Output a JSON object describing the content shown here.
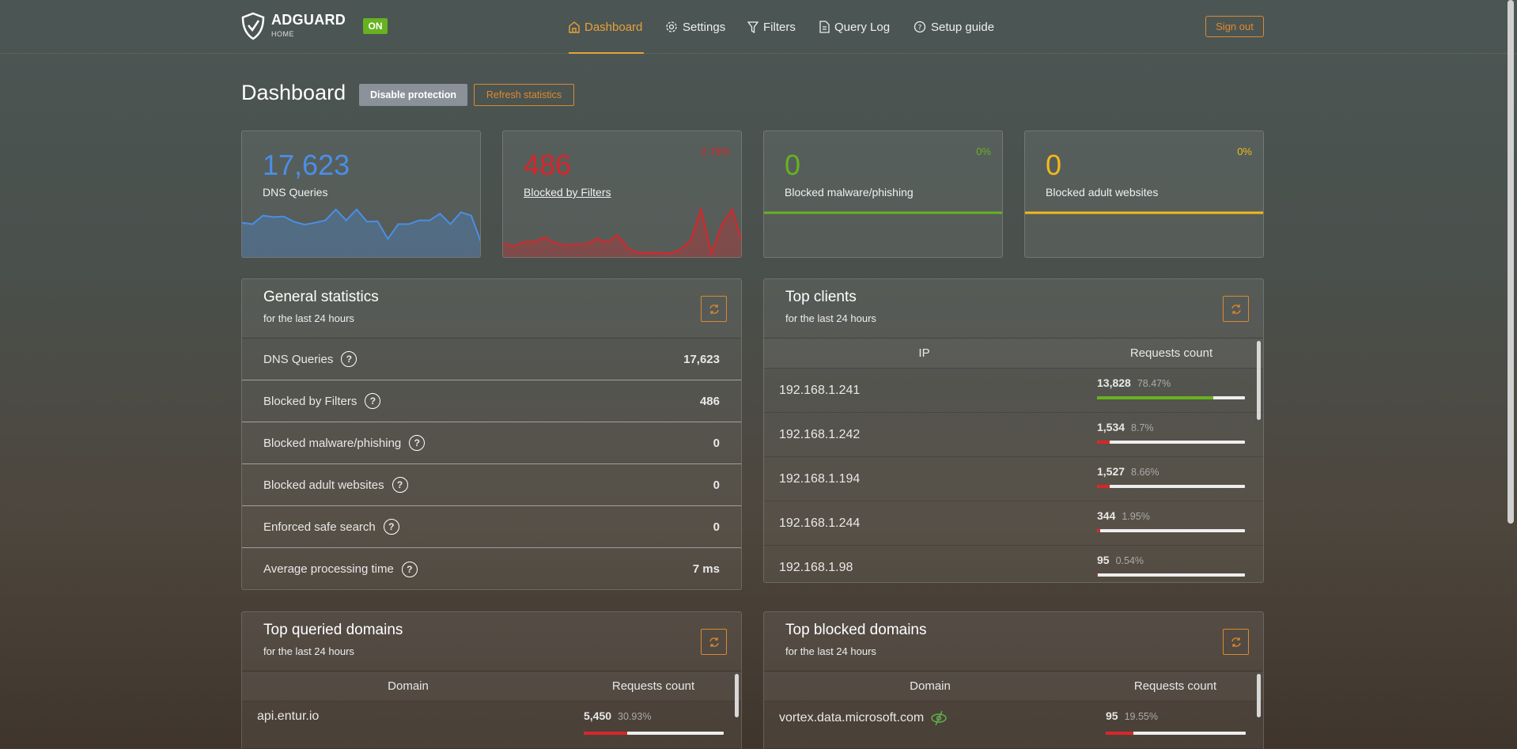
{
  "header": {
    "brand": "ADGUARD",
    "brand_sub": "HOME",
    "status_badge": "ON",
    "accent": "#e8a13a",
    "nav": [
      {
        "label": "Dashboard",
        "icon": "home-icon",
        "active": true
      },
      {
        "label": "Settings",
        "icon": "gear-icon"
      },
      {
        "label": "Filters",
        "icon": "filter-icon"
      },
      {
        "label": "Query Log",
        "icon": "document-icon"
      },
      {
        "label": "Setup guide",
        "icon": "help-circle-icon"
      }
    ],
    "sign_out": "Sign out"
  },
  "page": {
    "title": "Dashboard",
    "disable_protection": "Disable protection",
    "refresh_statistics": "Refresh statistics"
  },
  "cards": [
    {
      "value": "17,623",
      "label": "DNS Queries",
      "percent": "",
      "color": "#4a8ee6",
      "trend": [
        69,
        66,
        84,
        81,
        82,
        71,
        65,
        69,
        74,
        97,
        74,
        97,
        71,
        72,
        35,
        66,
        66,
        74,
        74,
        88,
        66,
        91,
        84,
        24
      ]
    },
    {
      "value": "486",
      "label": "Blocked by Filters",
      "percent": "2.76%",
      "color": "#d9262a",
      "trend": [
        26,
        19,
        29,
        29,
        38,
        26,
        22,
        24,
        24,
        35,
        28,
        43,
        15,
        6,
        6,
        6,
        4,
        12,
        32,
        97,
        4,
        65,
        97,
        24
      ]
    },
    {
      "value": "0",
      "label": "Blocked malware/phishing",
      "percent": "0%",
      "color": "#67b21f",
      "trend": [
        0,
        0
      ]
    },
    {
      "value": "0",
      "label": "Blocked adult websites",
      "percent": "0%",
      "color": "#f2b91b",
      "trend": [
        0,
        0
      ]
    }
  ],
  "general": {
    "title": "General statistics",
    "subtitle": "for the last 24 hours",
    "rows": [
      {
        "label": "DNS Queries",
        "value": "17,623"
      },
      {
        "label": "Blocked by Filters",
        "value": "486"
      },
      {
        "label": "Blocked malware/phishing",
        "value": "0"
      },
      {
        "label": "Blocked adult websites",
        "value": "0"
      },
      {
        "label": "Enforced safe search",
        "value": "0"
      },
      {
        "label": "Average processing time",
        "value": "7 ms"
      }
    ]
  },
  "clients": {
    "title": "Top clients",
    "subtitle": "for the last 24 hours",
    "col_ip": "IP",
    "col_count": "Requests count",
    "rows": [
      {
        "ip": "192.168.1.241",
        "count": "13,828",
        "percent": "78.47%",
        "fill": 78.47
      },
      {
        "ip": "192.168.1.242",
        "count": "1,534",
        "percent": "8.7%",
        "fill": 8.7
      },
      {
        "ip": "192.168.1.194",
        "count": "1,527",
        "percent": "8.66%",
        "fill": 8.66
      },
      {
        "ip": "192.168.1.244",
        "count": "344",
        "percent": "1.95%",
        "fill": 1.95
      },
      {
        "ip": "192.168.1.98",
        "count": "95",
        "percent": "0.54%",
        "fill": 0.54
      }
    ]
  },
  "queried": {
    "title": "Top queried domains",
    "subtitle": "for the last 24 hours",
    "col_domain": "Domain",
    "col_count": "Requests count",
    "rows": [
      {
        "domain": "api.entur.io",
        "count": "5,450",
        "percent": "30.93%",
        "fill": 30.93
      }
    ]
  },
  "blocked": {
    "title": "Top blocked domains",
    "subtitle": "for the last 24 hours",
    "col_domain": "Domain",
    "col_count": "Requests count",
    "rows": [
      {
        "domain": "vortex.data.microsoft.com",
        "count": "95",
        "percent": "19.55%",
        "fill": 19.55,
        "icon": "eye-off-icon"
      }
    ]
  }
}
